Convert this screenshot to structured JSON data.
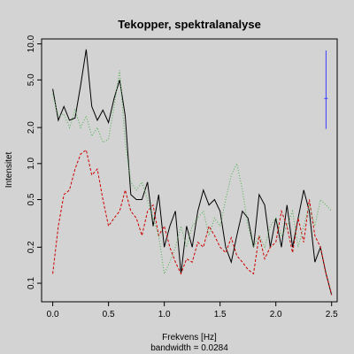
{
  "chart_data": {
    "type": "line",
    "title": "Tekopper, spektralanalyse",
    "xlabel": "Frekvens [Hz]",
    "ylabel": "Intensitet",
    "subtitle": "bandwidth = 0.0284",
    "xlim": [
      -0.1,
      2.55
    ],
    "ylim": [
      0.07,
      11.0
    ],
    "y_scale": "log",
    "x_ticks": [
      0.0,
      0.5,
      1.0,
      1.5,
      2.0,
      2.5
    ],
    "x_tick_labels": [
      "0.0",
      "0.5",
      "1.0",
      "1.5",
      "2.0",
      "2.5"
    ],
    "y_ticks": [
      0.1,
      0.2,
      0.5,
      1.0,
      2.0,
      5.0,
      10.0
    ],
    "y_tick_labels": [
      "0.1",
      "0.2",
      "0.5",
      "1.0",
      "2.0",
      "5.0",
      "10.0"
    ],
    "grid": false,
    "legend": "none",
    "series": [
      {
        "color": "#000000",
        "style": "solid",
        "x": [
          0.0,
          0.05,
          0.1,
          0.15,
          0.2,
          0.25,
          0.3,
          0.35,
          0.4,
          0.45,
          0.5,
          0.55,
          0.6,
          0.65,
          0.7,
          0.75,
          0.8,
          0.85,
          0.9,
          0.95,
          1.0,
          1.05,
          1.1,
          1.15,
          1.2,
          1.25,
          1.3,
          1.35,
          1.4,
          1.45,
          1.5,
          1.55,
          1.6,
          1.65,
          1.7,
          1.75,
          1.8,
          1.85,
          1.9,
          1.95,
          2.0,
          2.05,
          2.1,
          2.15,
          2.2,
          2.25,
          2.3,
          2.35,
          2.4,
          2.45,
          2.5
        ],
        "values": [
          4.2,
          2.3,
          3.0,
          2.3,
          2.4,
          4.5,
          9.0,
          3.0,
          2.3,
          2.8,
          2.2,
          3.5,
          5.0,
          2.5,
          0.55,
          0.5,
          0.5,
          0.7,
          0.3,
          0.55,
          0.2,
          0.3,
          0.4,
          0.12,
          0.3,
          0.2,
          0.4,
          0.6,
          0.45,
          0.5,
          0.4,
          0.2,
          0.15,
          0.25,
          0.4,
          0.35,
          0.2,
          0.55,
          0.45,
          0.2,
          0.35,
          0.2,
          0.45,
          0.2,
          0.35,
          0.6,
          0.4,
          0.15,
          0.2,
          0.12,
          0.08
        ]
      },
      {
        "color": "#cc0000",
        "style": "dashed",
        "x": [
          0.0,
          0.05,
          0.1,
          0.15,
          0.2,
          0.25,
          0.3,
          0.35,
          0.4,
          0.45,
          0.5,
          0.55,
          0.6,
          0.65,
          0.7,
          0.75,
          0.8,
          0.85,
          0.9,
          0.95,
          1.0,
          1.05,
          1.1,
          1.15,
          1.2,
          1.25,
          1.3,
          1.35,
          1.4,
          1.45,
          1.5,
          1.55,
          1.6,
          1.65,
          1.7,
          1.75,
          1.8,
          1.85,
          1.9,
          1.95,
          2.0,
          2.05,
          2.1,
          2.15,
          2.2,
          2.25,
          2.3,
          2.35,
          2.4,
          2.45,
          2.5
        ],
        "values": [
          0.12,
          0.3,
          0.55,
          0.6,
          0.9,
          1.2,
          1.3,
          0.8,
          0.9,
          0.5,
          0.3,
          0.35,
          0.4,
          0.6,
          0.4,
          0.35,
          0.25,
          0.4,
          0.45,
          0.25,
          0.3,
          0.2,
          0.15,
          0.12,
          0.16,
          0.15,
          0.22,
          0.2,
          0.3,
          0.25,
          0.2,
          0.18,
          0.24,
          0.17,
          0.15,
          0.13,
          0.12,
          0.25,
          0.16,
          0.2,
          0.22,
          0.4,
          0.3,
          0.18,
          0.35,
          0.22,
          0.5,
          0.25,
          0.2,
          0.12,
          0.08
        ]
      },
      {
        "color": "#4caf50",
        "style": "dotted",
        "x": [
          0.0,
          0.05,
          0.1,
          0.15,
          0.2,
          0.25,
          0.3,
          0.35,
          0.4,
          0.45,
          0.5,
          0.55,
          0.6,
          0.65,
          0.7,
          0.75,
          0.8,
          0.85,
          0.9,
          0.95,
          1.0,
          1.05,
          1.1,
          1.15,
          1.2,
          1.25,
          1.3,
          1.35,
          1.4,
          1.45,
          1.5,
          1.55,
          1.6,
          1.65,
          1.7,
          1.75,
          1.8,
          1.85,
          1.9,
          1.95,
          2.0,
          2.05,
          2.1,
          2.15,
          2.2,
          2.25,
          2.3,
          2.35,
          2.4,
          2.45,
          2.5
        ],
        "values": [
          3.8,
          2.5,
          2.6,
          2.0,
          2.8,
          2.0,
          2.5,
          1.7,
          2.0,
          1.5,
          1.6,
          3.0,
          6.0,
          1.5,
          0.7,
          0.6,
          0.7,
          0.5,
          0.35,
          0.25,
          0.12,
          0.15,
          0.2,
          0.3,
          0.2,
          0.3,
          0.35,
          0.4,
          0.25,
          0.35,
          0.3,
          0.5,
          0.8,
          1.0,
          0.6,
          0.3,
          0.2,
          0.25,
          0.2,
          0.3,
          0.35,
          0.25,
          0.3,
          0.4,
          0.2,
          0.3,
          0.45,
          0.3,
          0.5,
          0.45,
          0.4
        ]
      }
    ],
    "error_bar": {
      "color": "#3b3bff",
      "x": 2.45,
      "y_center": 3.5,
      "y_low": 1.95,
      "y_high": 8.8
    }
  }
}
